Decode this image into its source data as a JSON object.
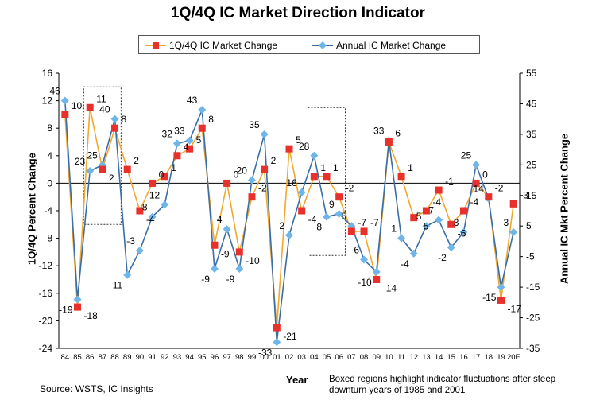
{
  "chart_data": {
    "type": "line",
    "title": "1Q/4Q IC Market Direction Indicator",
    "xlabel": "Year",
    "ylabel_left": "1Q/4Q Percent Change",
    "ylabel_right": "Annual IC Mkt Percent Change",
    "categories": [
      "84",
      "85",
      "86",
      "87",
      "88",
      "89",
      "90",
      "91",
      "92",
      "93",
      "94",
      "95",
      "96",
      "97",
      "98",
      "99",
      "00",
      "01",
      "02",
      "03",
      "04",
      "05",
      "06",
      "07",
      "08",
      "09",
      "10",
      "11",
      "12",
      "13",
      "14",
      "15",
      "16",
      "17",
      "18",
      "19",
      "20F"
    ],
    "left_axis": {
      "ylim": [
        -24,
        16
      ],
      "ticks": [
        16,
        12,
        8,
        4,
        0,
        -4,
        -8,
        -12,
        -16,
        -20,
        -24
      ]
    },
    "right_axis": {
      "ylim": [
        -35,
        55
      ],
      "ticks": [
        55,
        45,
        35,
        25,
        15,
        5,
        -5,
        -15,
        -25,
        -35
      ]
    },
    "series": [
      {
        "name": "1Q/4Q IC Market Change",
        "axis": "left",
        "color": "#f0a830",
        "marker_color": "#e8302c",
        "values": [
          10,
          -18,
          11,
          2,
          8,
          2,
          -4,
          0,
          1,
          4,
          5,
          8,
          -9,
          0,
          -10,
          -2,
          2,
          -21,
          5,
          -4,
          1,
          1,
          -2,
          -7,
          -7,
          -14,
          6,
          1,
          -5,
          -4,
          -1,
          -6,
          -4,
          0,
          -2,
          -17,
          -3
        ]
      },
      {
        "name": "Annual IC Market Change",
        "axis": "right",
        "color": "#3a6ea5",
        "marker_color": "#6eb6ea",
        "values": [
          46,
          -19,
          23,
          25,
          40,
          -11,
          -3,
          8,
          12,
          32,
          33,
          43,
          -9,
          4,
          -9,
          20,
          35,
          -33,
          2,
          16,
          28,
          8,
          9,
          5,
          -6,
          -10,
          33,
          1,
          -4,
          5,
          7,
          -2,
          3,
          25,
          14,
          -15,
          3
        ]
      }
    ],
    "grid": false,
    "legend_position": "top-center",
    "boxes": [
      [
        "86",
        "88"
      ],
      [
        "04",
        "06"
      ]
    ]
  },
  "source": "Source: WSTS, IC Insights",
  "note": "Boxed  regions highlight indicator fluctuations after steep downturn years of 1985 and 2001"
}
